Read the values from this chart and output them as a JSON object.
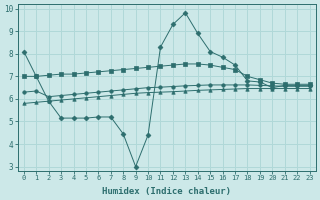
{
  "title": "",
  "xlabel": "Humidex (Indice chaleur)",
  "ylabel": "",
  "bg_color": "#cce8e8",
  "line_color": "#2d6e6e",
  "grid_color": "#b0d8d8",
  "xlim": [
    -0.5,
    23.5
  ],
  "ylim": [
    2.8,
    10.2
  ],
  "xticks": [
    0,
    1,
    2,
    3,
    4,
    5,
    6,
    7,
    8,
    9,
    10,
    11,
    12,
    13,
    14,
    15,
    16,
    17,
    18,
    19,
    20,
    21,
    22,
    23
  ],
  "yticks": [
    3,
    4,
    5,
    6,
    7,
    8,
    9,
    10
  ],
  "series": [
    {
      "x": [
        0,
        1,
        2,
        3,
        4,
        5,
        6,
        7,
        8,
        9,
        10,
        11,
        12,
        13,
        14,
        15,
        16,
        17,
        18,
        19,
        20,
        21,
        22,
        23
      ],
      "y": [
        8.1,
        7.0,
        5.9,
        5.15,
        5.15,
        5.15,
        5.2,
        5.2,
        4.45,
        3.0,
        4.4,
        8.3,
        9.3,
        9.82,
        8.9,
        8.1,
        7.85,
        7.5,
        6.8,
        6.75,
        6.5,
        6.6,
        6.6,
        6.6
      ]
    },
    {
      "x": [
        0,
        1,
        2,
        3,
        4,
        5,
        6,
        7,
        8,
        9,
        10,
        11,
        12,
        13,
        14,
        15,
        16,
        17,
        18,
        19,
        20,
        21,
        22,
        23
      ],
      "y": [
        7.0,
        7.0,
        7.05,
        7.1,
        7.1,
        7.15,
        7.2,
        7.25,
        7.3,
        7.35,
        7.4,
        7.45,
        7.5,
        7.55,
        7.55,
        7.5,
        7.4,
        7.3,
        7.0,
        6.85,
        6.7,
        6.65,
        6.65,
        6.65
      ]
    },
    {
      "x": [
        0,
        1,
        2,
        3,
        4,
        5,
        6,
        7,
        8,
        9,
        10,
        11,
        12,
        13,
        14,
        15,
        16,
        17,
        18,
        19,
        20,
        21,
        22,
        23
      ],
      "y": [
        6.3,
        6.35,
        6.1,
        6.15,
        6.2,
        6.25,
        6.3,
        6.35,
        6.4,
        6.45,
        6.5,
        6.52,
        6.55,
        6.58,
        6.6,
        6.62,
        6.62,
        6.62,
        6.62,
        6.6,
        6.58,
        6.56,
        6.56,
        6.56
      ]
    },
    {
      "x": [
        0,
        1,
        2,
        3,
        4,
        5,
        6,
        7,
        8,
        9,
        10,
        11,
        12,
        13,
        14,
        15,
        16,
        17,
        18,
        19,
        20,
        21,
        22,
        23
      ],
      "y": [
        5.8,
        5.85,
        5.9,
        5.95,
        6.0,
        6.05,
        6.1,
        6.15,
        6.2,
        6.25,
        6.28,
        6.3,
        6.32,
        6.35,
        6.38,
        6.4,
        6.42,
        6.44,
        6.46,
        6.46,
        6.46,
        6.46,
        6.46,
        6.46
      ]
    }
  ]
}
